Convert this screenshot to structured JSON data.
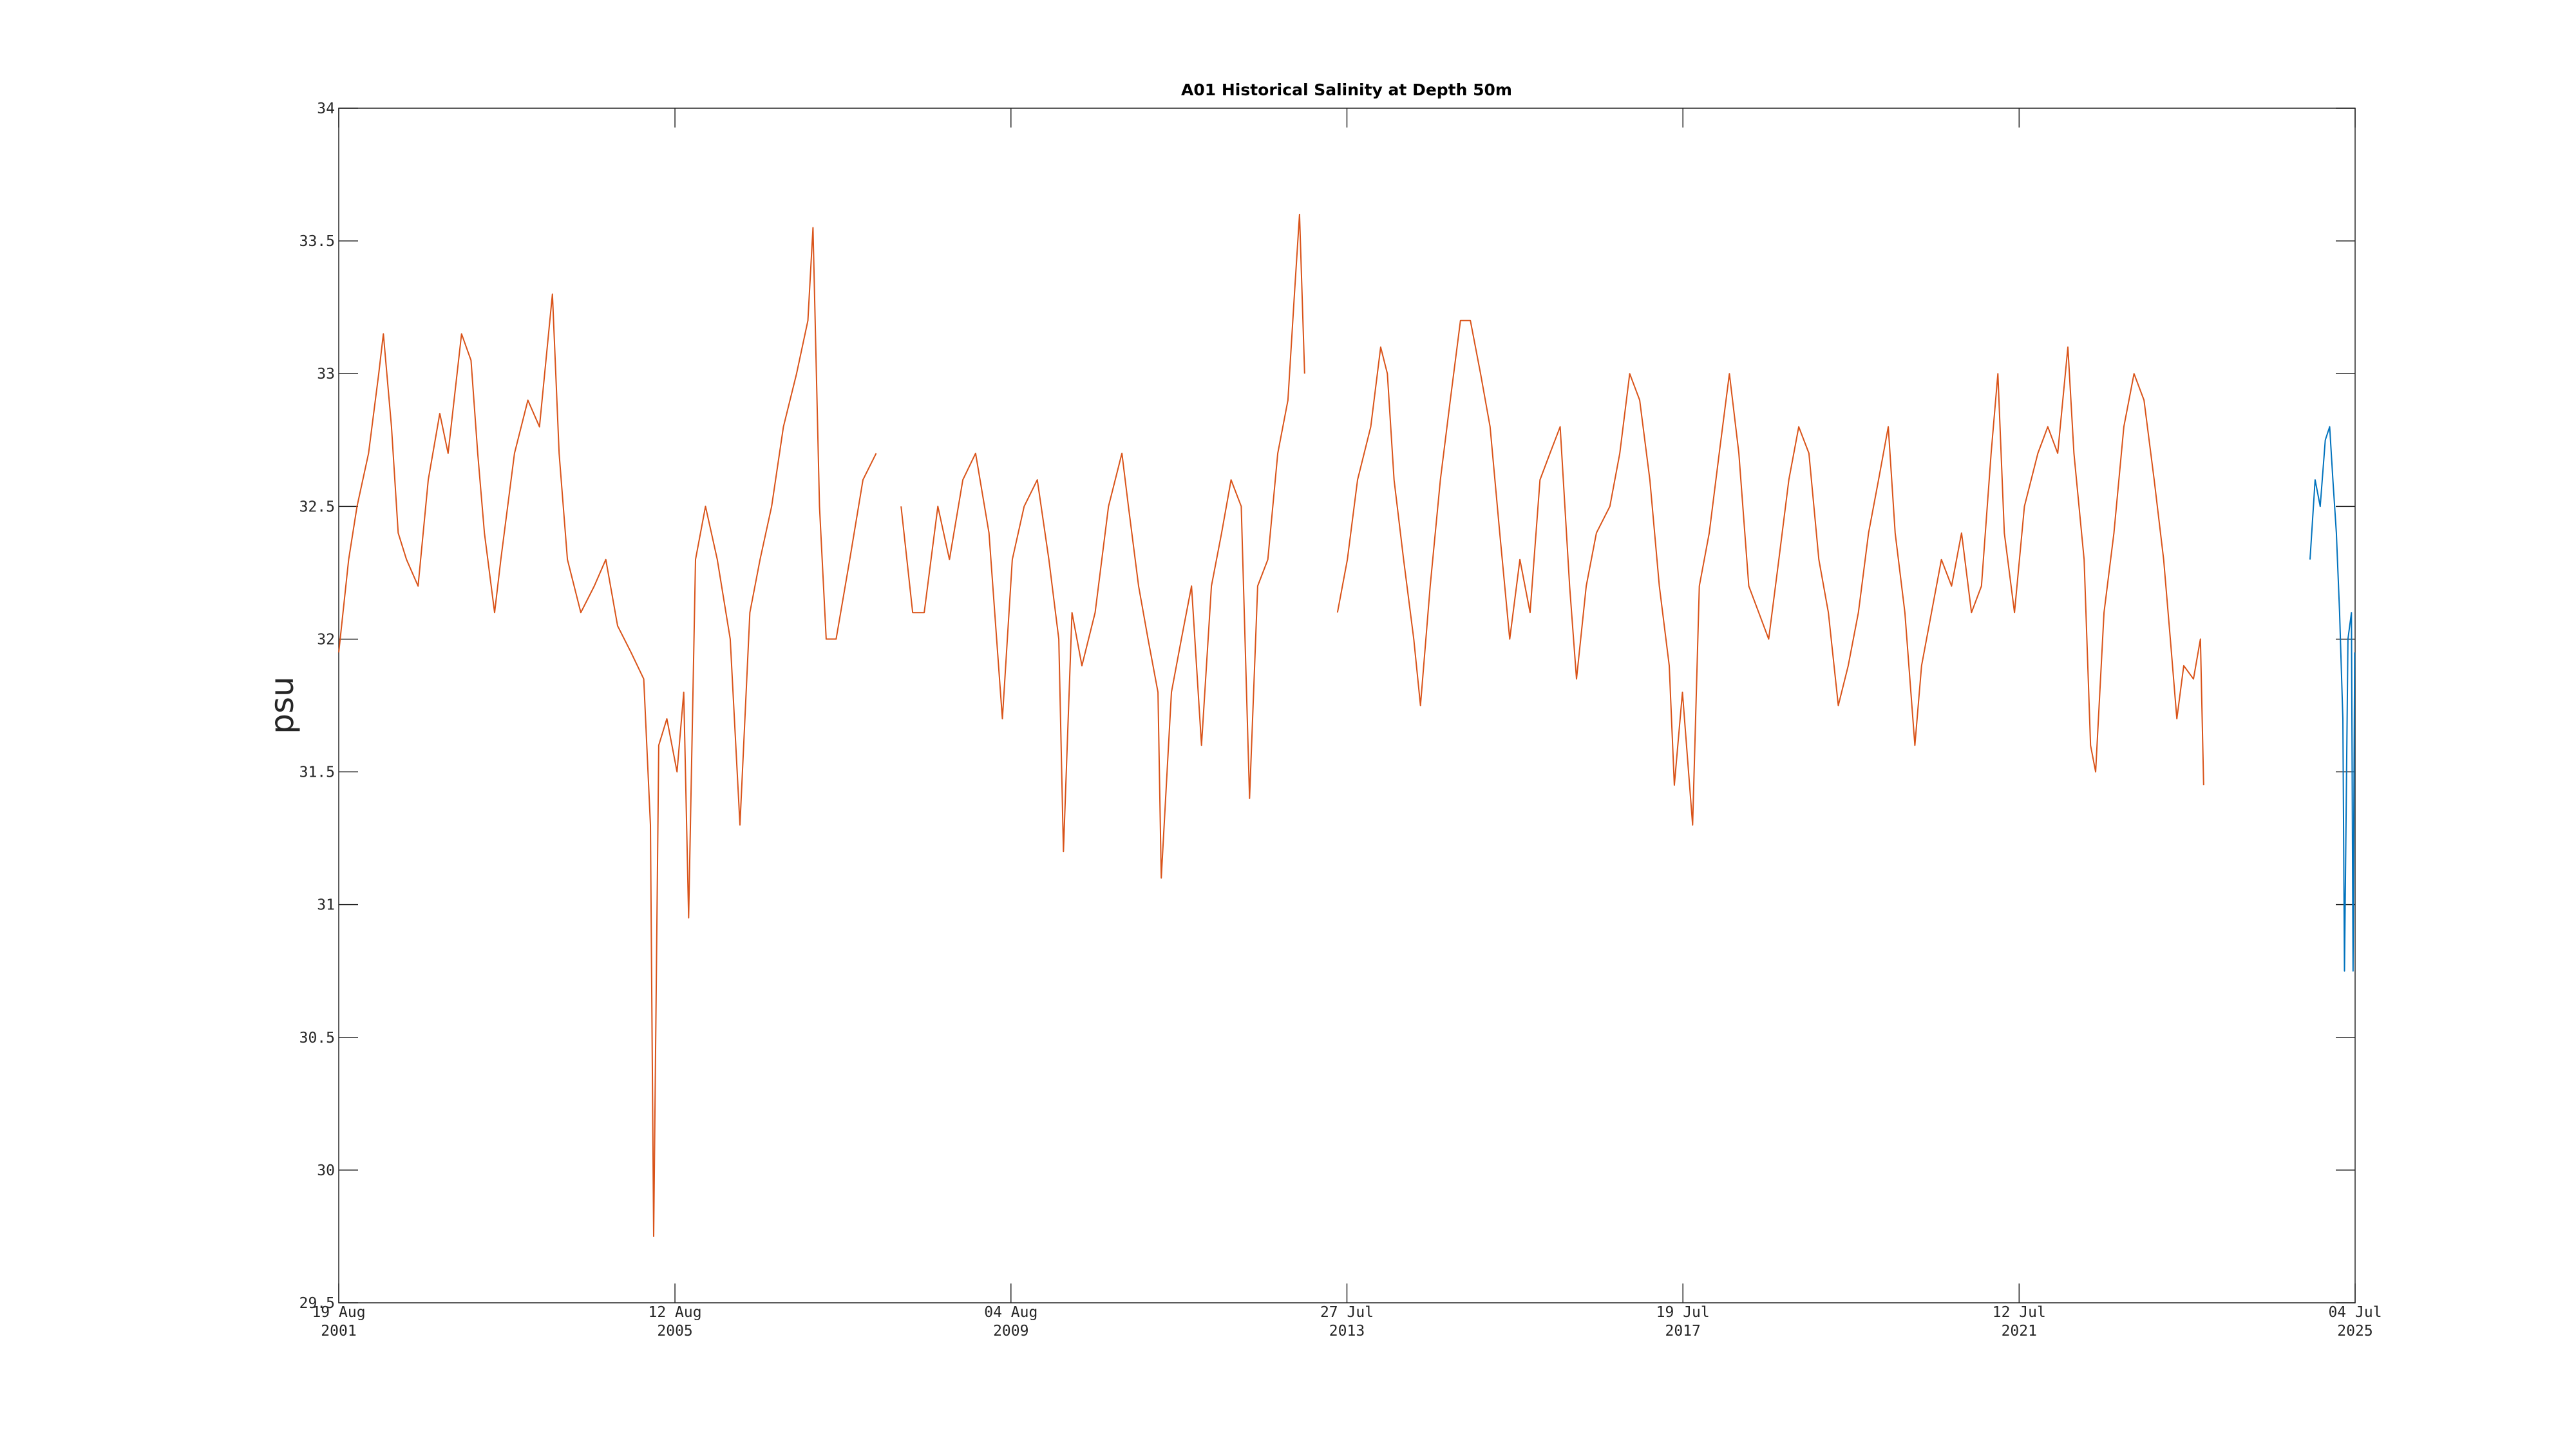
{
  "chart_data": {
    "type": "line",
    "title": "A01 Historical Salinity at Depth 50m",
    "ylabel": "psu",
    "xlim": [
      "2001-08-19",
      "2025-07-04"
    ],
    "ylim": [
      29.5,
      34
    ],
    "yticks": [
      29.5,
      30,
      30.5,
      31,
      31.5,
      32,
      32.5,
      33,
      33.5,
      34
    ],
    "xticks": [
      {
        "value": "2001-08-19",
        "label": "19 Aug 2001"
      },
      {
        "value": "2005-08-12",
        "label": "12 Aug 2005"
      },
      {
        "value": "2009-08-04",
        "label": "04 Aug 2009"
      },
      {
        "value": "2013-07-27",
        "label": "27 Jul 2013"
      },
      {
        "value": "2017-07-19",
        "label": "19 Jul 2017"
      },
      {
        "value": "2021-07-12",
        "label": "12 Jul 2021"
      },
      {
        "value": "2025-07-04",
        "label": "04 Jul 2025"
      }
    ],
    "grid": false,
    "series": [
      {
        "color": "#d95319",
        "x": [
          "2001-08-19",
          "2001-10-01",
          "2001-11-06",
          "2001-12-26",
          "2002-02-08",
          "2002-02-28",
          "2002-04-04",
          "2002-05-03",
          "2002-06-08",
          "2002-07-28",
          "2002-09-10",
          "2002-10-30",
          "2002-12-05",
          "2003-02-01",
          "2003-03-14",
          "2003-04-12",
          "2003-05-11",
          "2003-06-24",
          "2003-07-21",
          "2003-09-18",
          "2003-11-15",
          "2004-01-04",
          "2004-02-29",
          "2004-03-29",
          "2004-05-04",
          "2004-07-01",
          "2004-08-28",
          "2004-10-17",
          "2004-12-07",
          "2005-02-03",
          "2005-03-30",
          "2005-04-28",
          "2005-05-12",
          "2005-06-03",
          "2005-07-08",
          "2005-08-21",
          "2005-09-19",
          "2005-10-10",
          "2005-11-09",
          "2005-12-22",
          "2006-02-11",
          "2006-04-08",
          "2006-05-20",
          "2006-07-02",
          "2006-08-15",
          "2006-10-04",
          "2006-11-24",
          "2007-01-20",
          "2007-03-10",
          "2007-04-01",
          "2007-04-29",
          "2007-05-28",
          "2007-07-10",
          "2007-09-07",
          "2007-11-03",
          "2007-12-30",
          "2008-02-19",
          "2008-04-16",
          "2008-06-05",
          "2008-07-25",
          "2008-09-22",
          "2008-11-11",
          "2009-01-08",
          "2009-03-04",
          "2009-05-01",
          "2009-06-28",
          "2009-08-10",
          "2009-09-30",
          "2009-11-26",
          "2010-01-15",
          "2010-02-27",
          "2010-03-19",
          "2010-04-25",
          "2010-06-07",
          "2010-08-03",
          "2010-09-30",
          "2010-11-27",
          "2010-12-25",
          "2011-02-07",
          "2011-03-20",
          "2011-05-02",
          "2011-05-16",
          "2011-06-29",
          "2011-08-11",
          "2011-09-24",
          "2011-11-06",
          "2011-12-19",
          "2012-02-01",
          "2012-03-13",
          "2012-04-26",
          "2012-06-01",
          "2012-07-06",
          "2012-08-19",
          "2012-10-01",
          "2012-11-14",
          "2012-12-12",
          "2013-01-03",
          "2013-01-25",
          "2013-04-01",
          "2013-06-16",
          "2013-07-29",
          "2013-09-11",
          "2013-11-07",
          "2013-12-20",
          "2014-01-18",
          "2014-02-16",
          "2014-03-29",
          "2014-05-12",
          "2014-06-10",
          "2014-07-22",
          "2014-09-04",
          "2014-10-17",
          "2014-11-30",
          "2015-01-12",
          "2015-02-25",
          "2015-04-07",
          "2015-05-19",
          "2015-07-01",
          "2015-08-14",
          "2015-09-27",
          "2015-11-09",
          "2015-12-22",
          "2016-02-04",
          "2016-03-16",
          "2016-04-15",
          "2016-05-27",
          "2016-07-10",
          "2016-09-06",
          "2016-10-19",
          "2016-12-01",
          "2017-01-13",
          "2017-02-26",
          "2017-04-08",
          "2017-05-21",
          "2017-06-12",
          "2017-07-17",
          "2017-08-30",
          "2017-09-28",
          "2017-11-10",
          "2017-12-23",
          "2018-02-05",
          "2018-03-18",
          "2018-04-30",
          "2018-06-12",
          "2018-07-25",
          "2018-09-07",
          "2018-10-20",
          "2018-12-02",
          "2019-01-15",
          "2019-02-27",
          "2019-04-09",
          "2019-05-22",
          "2019-07-04",
          "2019-08-17",
          "2019-09-30",
          "2019-11-12",
          "2019-12-24",
          "2020-01-23",
          "2020-03-05",
          "2020-04-17",
          "2020-05-16",
          "2020-06-28",
          "2020-08-10",
          "2020-09-23",
          "2020-11-05",
          "2020-12-18",
          "2021-01-30",
          "2021-03-13",
          "2021-04-11",
          "2021-05-09",
          "2021-06-22",
          "2021-08-04",
          "2021-10-01",
          "2021-11-13",
          "2021-12-26",
          "2022-02-08",
          "2022-03-06",
          "2022-04-19",
          "2022-05-17",
          "2022-06-08",
          "2022-07-14",
          "2022-08-26",
          "2022-10-08",
          "2022-11-21",
          "2023-01-03",
          "2023-02-16",
          "2023-03-29",
          "2023-04-27",
          "2023-05-25",
          "2023-06-24",
          "2023-08-05",
          "2023-09-04",
          "2023-09-18"
        ],
        "values": [
          31.95,
          32.3,
          32.5,
          32.7,
          33.0,
          33.15,
          32.8,
          32.4,
          32.3,
          32.2,
          32.6,
          32.85,
          32.7,
          33.15,
          33.05,
          32.7,
          32.4,
          32.1,
          32.3,
          32.7,
          32.9,
          32.8,
          33.3,
          32.7,
          32.3,
          32.1,
          32.2,
          32.3,
          32.05,
          31.95,
          31.85,
          31.3,
          29.75,
          31.6,
          31.7,
          31.5,
          31.8,
          30.95,
          32.3,
          32.5,
          32.3,
          32.0,
          31.3,
          32.1,
          32.3,
          32.5,
          32.8,
          33.0,
          33.2,
          33.55,
          32.5,
          32.0,
          32.0,
          32.3,
          32.6,
          32.7,
          null,
          32.5,
          32.1,
          32.1,
          32.5,
          32.3,
          32.6,
          32.7,
          32.4,
          31.7,
          32.3,
          32.5,
          32.6,
          32.3,
          32.0,
          31.2,
          32.1,
          31.9,
          32.1,
          32.5,
          32.7,
          32.5,
          32.2,
          32.0,
          31.8,
          31.1,
          31.8,
          32.0,
          32.2,
          31.6,
          32.2,
          32.4,
          32.6,
          32.5,
          31.4,
          32.2,
          32.3,
          32.7,
          32.9,
          33.3,
          33.6,
          33.0,
          null,
          32.1,
          32.3,
          32.6,
          32.8,
          33.1,
          33.0,
          32.6,
          32.3,
          32.0,
          31.75,
          32.2,
          32.6,
          32.9,
          33.2,
          33.2,
          33.0,
          32.8,
          32.4,
          32.0,
          32.3,
          32.1,
          32.6,
          32.7,
          32.8,
          32.2,
          31.85,
          32.2,
          32.4,
          32.5,
          32.7,
          33.0,
          32.9,
          32.6,
          32.2,
          31.9,
          31.45,
          31.8,
          31.3,
          32.2,
          32.4,
          32.7,
          33.0,
          32.7,
          32.2,
          32.1,
          32.0,
          32.3,
          32.6,
          32.8,
          32.7,
          32.3,
          32.1,
          31.75,
          31.9,
          32.1,
          32.4,
          32.6,
          32.8,
          32.4,
          32.1,
          31.6,
          31.9,
          32.1,
          32.3,
          32.2,
          32.4,
          32.1,
          32.2,
          32.7,
          33.0,
          32.4,
          32.1,
          32.5,
          32.7,
          32.8,
          32.7,
          33.1,
          32.7,
          32.3,
          31.6,
          31.5,
          32.1,
          32.4,
          32.8,
          33.0,
          32.9,
          32.6,
          32.3,
          32.0,
          31.7,
          31.9,
          31.85,
          32.0,
          31.45
        ]
      },
      {
        "color": "#0072bd",
        "x": [
          "2024-12-21",
          "2025-01-12",
          "2025-02-03",
          "2025-02-25",
          "2025-03-16",
          "2025-03-30",
          "2025-04-14",
          "2025-04-28",
          "2025-05-12",
          "2025-05-19",
          "2025-06-03",
          "2025-06-18",
          "2025-06-25",
          "2025-07-02"
        ],
        "values": [
          32.3,
          32.6,
          32.5,
          32.75,
          32.8,
          32.6,
          32.4,
          32.1,
          31.7,
          30.75,
          32.0,
          32.1,
          30.75,
          31.95
        ]
      }
    ]
  }
}
